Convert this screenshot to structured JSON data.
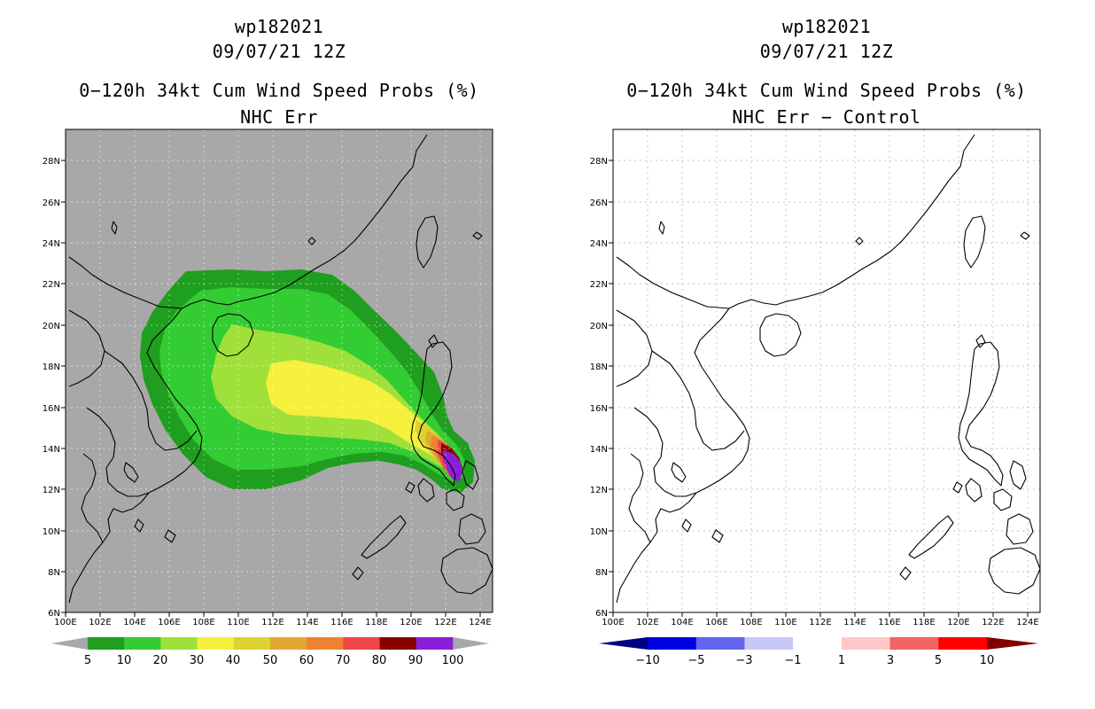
{
  "left": {
    "storm_id": "wp182021",
    "datetime": "09/07/21 12Z",
    "title": "0−120h 34kt Cum Wind Speed Probs (%)",
    "subtitle": "NHC Err",
    "colorbar": {
      "labels": [
        "5",
        "10",
        "20",
        "30",
        "40",
        "50",
        "60",
        "70",
        "80",
        "90",
        "100"
      ],
      "colors": [
        "#1f9e1f",
        "#33cc33",
        "#a0e03a",
        "#f5f03c",
        "#dcd232",
        "#e0a832",
        "#ee8232",
        "#ee4646",
        "#8a0000",
        "#8b1fd8"
      ],
      "under_color": "#a8a8a8",
      "over_color": "#a8a8a8"
    }
  },
  "right": {
    "storm_id": "wp182021",
    "datetime": "09/07/21 12Z",
    "title": "0−120h 34kt Cum Wind Speed Probs (%)",
    "subtitle": "NHC Err − Control",
    "colorbar": {
      "labels": [
        "−10",
        "−5",
        "−3",
        "−1",
        "1",
        "3",
        "5",
        "10"
      ],
      "colors": [
        "#0000e0",
        "#6464ee",
        "#c8c8f8",
        "#ffffff",
        "#ffc8c8",
        "#f06464",
        "#ff0000"
      ],
      "under_color": "#000080",
      "over_color": "#800000"
    }
  },
  "map": {
    "lon_labels": [
      "100E",
      "102E",
      "104E",
      "106E",
      "108E",
      "110E",
      "112E",
      "114E",
      "116E",
      "118E",
      "120E",
      "122E",
      "124E"
    ],
    "lat_labels": [
      "6N",
      "8N",
      "10N",
      "12N",
      "14N",
      "16N",
      "18N",
      "20N",
      "22N",
      "24N",
      "26N",
      "28N"
    ],
    "lon_range": [
      100,
      125
    ],
    "lat_range": [
      6,
      29.5
    ],
    "background_left": "#a8a8a8",
    "background_right": "#ffffff"
  }
}
